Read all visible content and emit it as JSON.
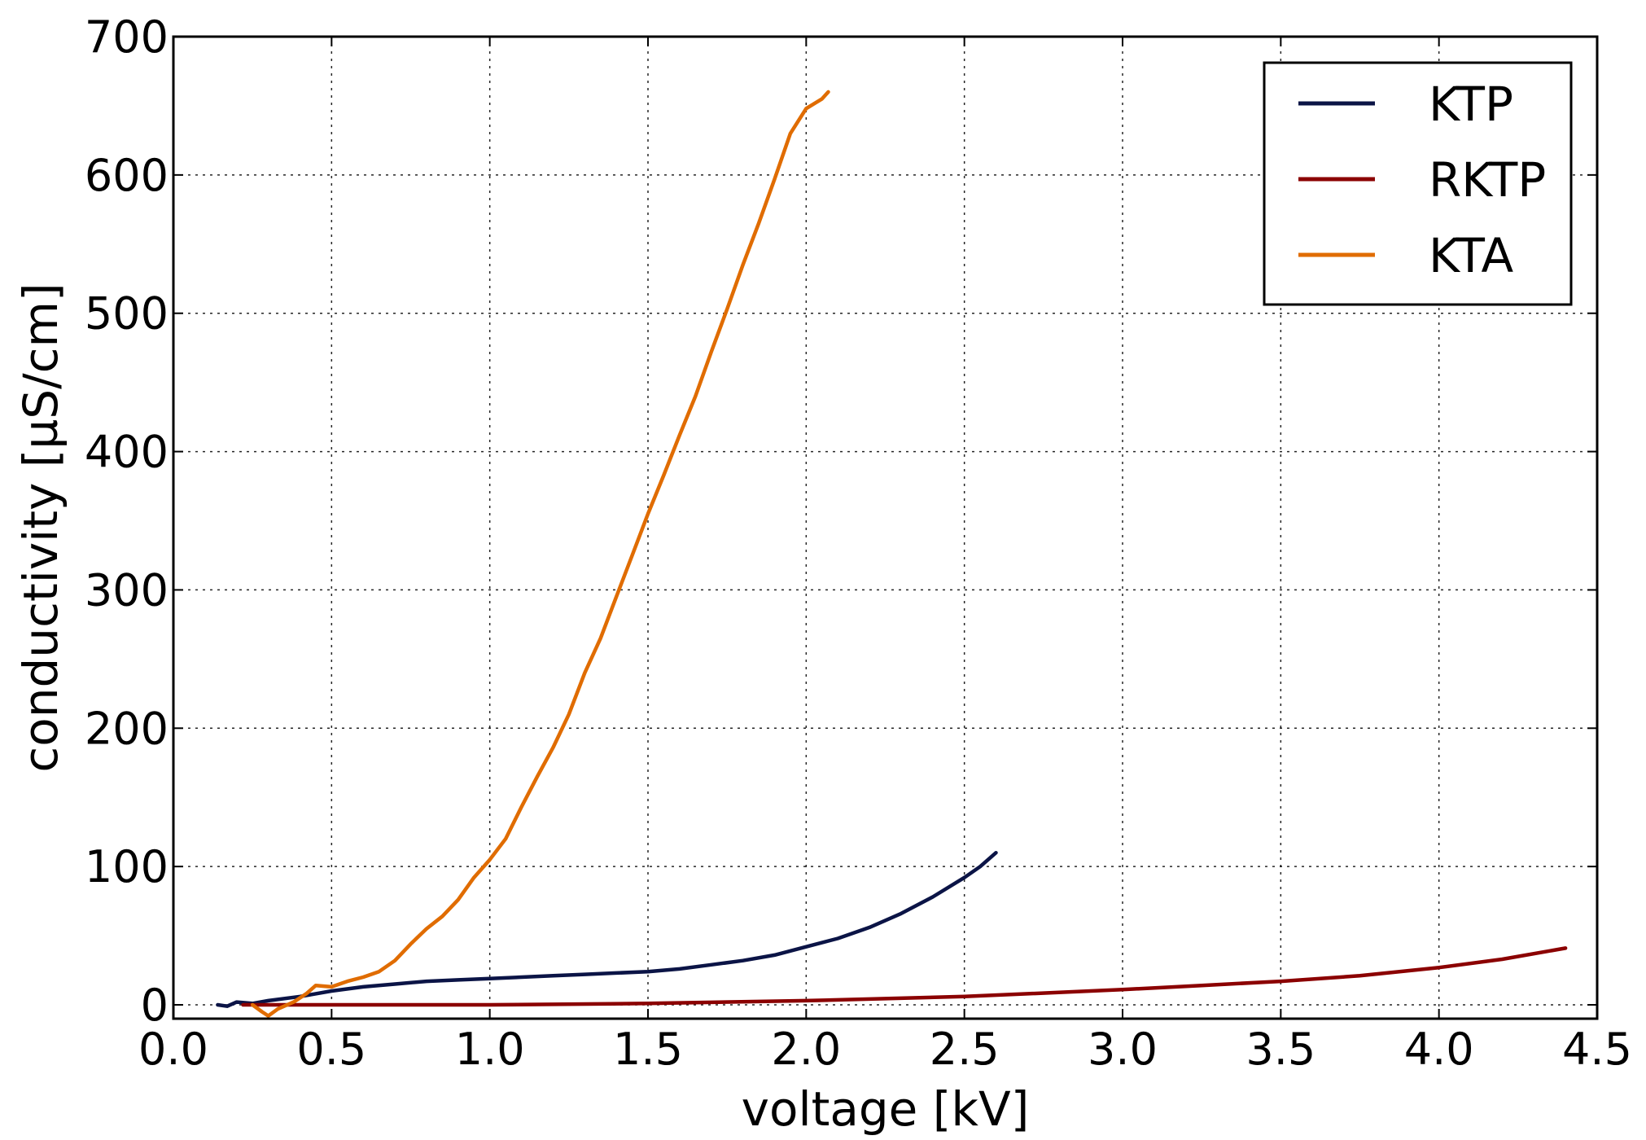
{
  "chart_data": {
    "type": "line",
    "title": "",
    "xlabel": "voltage [kV]",
    "ylabel": "conductivity [µS/cm]",
    "xlim": [
      0.0,
      4.5
    ],
    "ylim": [
      -10,
      700
    ],
    "x_ticks": [
      "0.0",
      "0.5",
      "1.0",
      "1.5",
      "2.0",
      "2.5",
      "3.0",
      "3.5",
      "4.0",
      "4.5"
    ],
    "y_ticks": [
      "0",
      "100",
      "200",
      "300",
      "400",
      "500",
      "600",
      "700"
    ],
    "grid": true,
    "legend_position": "top-right",
    "series": [
      {
        "name": "KTP",
        "color": "#0b1446",
        "x": [
          0.14,
          0.17,
          0.2,
          0.25,
          0.3,
          0.4,
          0.5,
          0.6,
          0.7,
          0.8,
          0.9,
          1.0,
          1.1,
          1.2,
          1.3,
          1.4,
          1.5,
          1.6,
          1.7,
          1.8,
          1.9,
          2.0,
          2.1,
          2.2,
          2.3,
          2.4,
          2.5,
          2.55,
          2.6
        ],
        "y": [
          0,
          -1,
          2,
          1,
          3,
          6,
          10,
          13,
          15,
          17,
          18,
          19,
          20,
          21,
          22,
          23,
          24,
          26,
          29,
          32,
          36,
          42,
          48,
          56,
          66,
          78,
          92,
          100,
          110
        ]
      },
      {
        "name": "RKTP",
        "color": "#8b0000",
        "x": [
          0.22,
          0.5,
          1.0,
          1.5,
          2.0,
          2.5,
          3.0,
          3.25,
          3.5,
          3.75,
          4.0,
          4.2,
          4.4
        ],
        "y": [
          0,
          0,
          0,
          1,
          3,
          6,
          11,
          14,
          17,
          21,
          27,
          33,
          41
        ]
      },
      {
        "name": "KTA",
        "color": "#e06c00",
        "x": [
          0.25,
          0.28,
          0.3,
          0.33,
          0.38,
          0.42,
          0.45,
          0.5,
          0.55,
          0.6,
          0.65,
          0.7,
          0.75,
          0.8,
          0.85,
          0.9,
          0.95,
          1.0,
          1.05,
          1.1,
          1.15,
          1.2,
          1.25,
          1.3,
          1.35,
          1.4,
          1.45,
          1.5,
          1.55,
          1.6,
          1.65,
          1.7,
          1.75,
          1.8,
          1.85,
          1.9,
          1.95,
          2.0,
          2.05,
          2.07
        ],
        "y": [
          0,
          -5,
          -8,
          -3,
          2,
          8,
          14,
          13,
          17,
          20,
          24,
          32,
          44,
          55,
          64,
          76,
          92,
          105,
          120,
          143,
          165,
          186,
          210,
          240,
          265,
          295,
          325,
          355,
          383,
          412,
          440,
          472,
          503,
          535,
          565,
          597,
          630,
          648,
          655,
          660
        ]
      }
    ]
  }
}
